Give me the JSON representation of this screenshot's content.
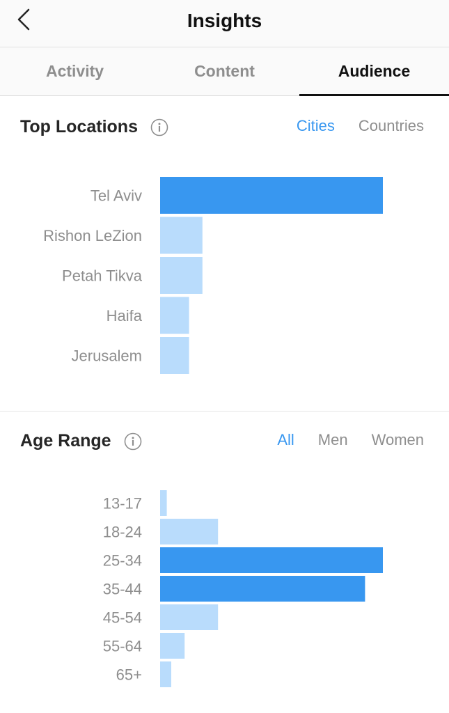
{
  "header": {
    "title": "Insights"
  },
  "tabs": [
    {
      "label": "Activity",
      "active": false
    },
    {
      "label": "Content",
      "active": false
    },
    {
      "label": "Audience",
      "active": true
    }
  ],
  "top_locations": {
    "title": "Top Locations",
    "filters": [
      {
        "label": "Cities",
        "active": true
      },
      {
        "label": "Countries",
        "active": false
      }
    ]
  },
  "age_range": {
    "title": "Age Range",
    "filters": [
      {
        "label": "All",
        "active": true
      },
      {
        "label": "Men",
        "active": false
      },
      {
        "label": "Women",
        "active": false
      }
    ]
  },
  "colors": {
    "accent": "#3897f0",
    "bar_primary": "#3897f0",
    "bar_secondary": "#b9dcfc",
    "muted_text": "#8e8e8e"
  },
  "chart_data": [
    {
      "type": "bar",
      "orientation": "horizontal",
      "title": "Top Locations",
      "categories": [
        "Tel Aviv",
        "Rishon LeZion",
        "Petah Tikva",
        "Haifa",
        "Jerusalem"
      ],
      "values": [
        100,
        19,
        19,
        13,
        13
      ],
      "highlighted": [
        true,
        false,
        false,
        false,
        false
      ],
      "xlim": [
        0,
        100
      ]
    },
    {
      "type": "bar",
      "orientation": "horizontal",
      "title": "Age Range",
      "categories": [
        "13-17",
        "18-24",
        "25-34",
        "35-44",
        "45-54",
        "55-64",
        "65+"
      ],
      "values": [
        3,
        26,
        100,
        92,
        26,
        11,
        5
      ],
      "highlighted": [
        false,
        false,
        true,
        true,
        false,
        false,
        false
      ],
      "xlim": [
        0,
        100
      ]
    }
  ]
}
